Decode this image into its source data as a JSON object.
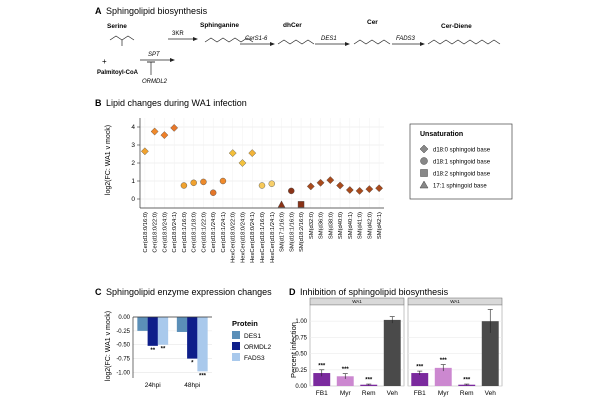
{
  "panelA": {
    "letter": "A",
    "title": "Sphingolipid biosynthesis",
    "serine": "Serine",
    "plus": "+",
    "palmitoyl": "Palmitoyl-CoA",
    "spt": "SPT",
    "ormdl2": "ORMDL2",
    "threekr": "3KR",
    "sphinganine": "Sphinganine",
    "cers": "CerS1-6",
    "dhcer": "dhCer",
    "des1": "DES1",
    "cer": "Cer",
    "fads3": "FADS3",
    "cerdiene": "Cer-Diene"
  },
  "panelB": {
    "letter": "B",
    "title": "Lipid changes during WA1 infection",
    "ylabel": "log2(FC: WA1 v mock)",
    "legend": {
      "title": "Unsaturation",
      "items": [
        "d18:0 sphingoid base",
        "d18:1 sphingoid base",
        "d18:2 sphingoid base",
        "17:1 sphingoid base"
      ]
    },
    "chart_data": {
      "type": "scatter",
      "ylim": [
        -0.5,
        4.5
      ],
      "yticks": [
        0,
        1,
        2,
        3,
        4
      ],
      "categories": [
        "Cer(d18:0/16:0)",
        "Cer(d18:0/22:0)",
        "Cer(d18:0/24:0)",
        "Cer(d18:0/24:1)",
        "Cer(d18:1/16:0)",
        "Cer(d18:1/18:0)",
        "Cer(d18:1/22:0)",
        "Cer(d18:1/24:0)",
        "Cer(d18:1/24:1)",
        "HexCer(d18:0/22:0)",
        "HexCer(d18:0/24:0)",
        "HexCer(d18:0/24:1)",
        "HexCer(d18:1/16:0)",
        "HexCer(d18:1/24:1)",
        "SM(d17:1/16:0)",
        "SM(d18:1/16:0)",
        "SM(d18:2/16:0)",
        "SM(d32:0)",
        "SM(d36:0)",
        "SM(d38:0)",
        "SM(d40:0)",
        "SM(d40:1)",
        "SM(d41:0)",
        "SM(d42:0)",
        "SM(d42:1)"
      ],
      "values": [
        2.65,
        3.75,
        3.55,
        3.95,
        0.75,
        0.9,
        0.95,
        0.35,
        1.0,
        2.55,
        2.0,
        2.55,
        0.75,
        0.85,
        -0.3,
        0.45,
        -0.3,
        0.7,
        0.9,
        1.05,
        0.75,
        0.5,
        0.45,
        0.55,
        0.6
      ],
      "shape": [
        "diamond",
        "diamond",
        "diamond",
        "diamond",
        "circle",
        "circle",
        "circle",
        "circle",
        "circle",
        "diamond",
        "diamond",
        "diamond",
        "circle",
        "circle",
        "triangle",
        "circle",
        "square",
        "diamond",
        "diamond",
        "diamond",
        "diamond",
        "diamond",
        "diamond",
        "diamond",
        "diamond"
      ],
      "color": [
        "#f0a22f",
        "#f08a2b",
        "#ee7f28",
        "#e8782a",
        "#f0a22f",
        "#f0a22f",
        "#ec8a2c",
        "#e37628",
        "#f08a2b",
        "#f2be3a",
        "#f2c13d",
        "#f2b338",
        "#f7c95a",
        "#f7cf6a",
        "#8a3317",
        "#8a3317",
        "#8a3317",
        "#a84a1c",
        "#a84a1c",
        "#a84a1c",
        "#a84a1c",
        "#a84a1c",
        "#a84a1c",
        "#a84a1c",
        "#a84a1c"
      ]
    }
  },
  "panelC": {
    "letter": "C",
    "title": "Sphingolipid enzyme expression changes",
    "ylabel": "log2(FC: WA1 v mock)",
    "legend": {
      "title": "Protein",
      "items": [
        "DES1",
        "ORMDL2",
        "FADS3"
      ]
    },
    "chart_data": {
      "type": "bar",
      "categories": [
        "24hpi",
        "48hpi"
      ],
      "series": [
        {
          "name": "DES1",
          "values": [
            -0.25,
            -0.27
          ],
          "sig": [
            "",
            ""
          ]
        },
        {
          "name": "ORMDL2",
          "values": [
            -0.52,
            -0.75
          ],
          "sig": [
            "**",
            "*"
          ]
        },
        {
          "name": "FADS3",
          "values": [
            -0.5,
            -0.98
          ],
          "sig": [
            "**",
            "***"
          ]
        }
      ],
      "ylim": [
        -1.1,
        0
      ],
      "yticks": [
        "0.00",
        "-0.25",
        "-0.50",
        "-0.75",
        "-1.00"
      ]
    }
  },
  "panelD": {
    "letter": "D",
    "title": "Inhibition of sphingolipid biosynthesis",
    "ylabel": "Percent infection",
    "facets": [
      "WA1",
      "WA1"
    ],
    "chart_data": {
      "type": "bar",
      "categories": [
        "FB1",
        "Myr",
        "Rem",
        "Veh"
      ],
      "ylim": [
        0,
        1.25
      ],
      "yticks": [
        "0.00",
        "0.25",
        "0.50",
        "0.75",
        "1.00"
      ],
      "facet_values": [
        [
          0.2,
          0.15,
          0.02,
          1.02
        ],
        [
          0.2,
          0.28,
          0.02,
          1.0
        ]
      ],
      "facet_errors": [
        [
          0.05,
          0.04,
          0.01,
          0.05
        ],
        [
          0.03,
          0.05,
          0.01,
          0.18
        ]
      ],
      "sig": [
        [
          "***",
          "***",
          "***",
          ""
        ],
        [
          "***",
          "***",
          "***",
          ""
        ]
      ],
      "colors": [
        "#7b2a9e",
        "#cc88d0",
        "#7b2a9e",
        "#4a4a4a"
      ]
    }
  }
}
